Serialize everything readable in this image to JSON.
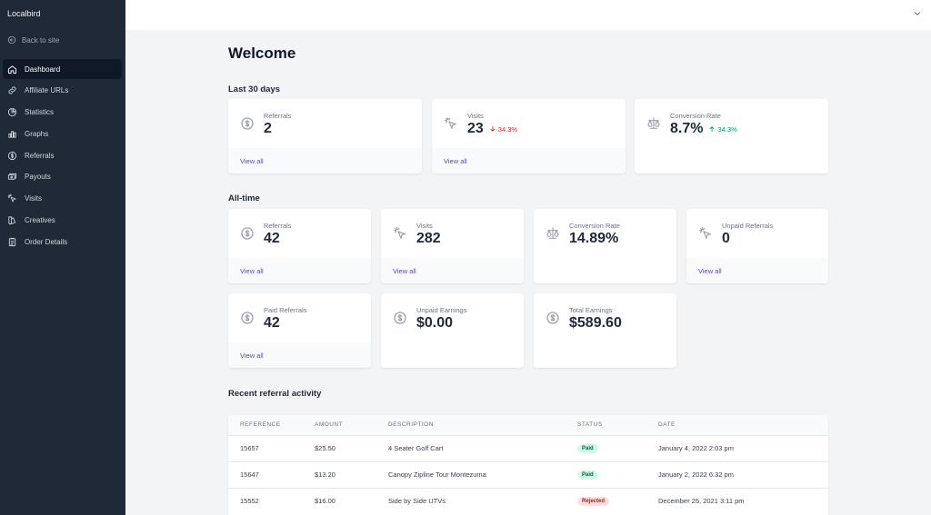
{
  "sidebar": {
    "brand": "Localbird",
    "back_label": "Back to site",
    "items": [
      {
        "label": "Dashboard",
        "icon": "home-icon",
        "active": true
      },
      {
        "label": "Affiliate URLs",
        "icon": "link-icon"
      },
      {
        "label": "Statistics",
        "icon": "chart-pie-icon"
      },
      {
        "label": "Graphs",
        "icon": "chart-bar-icon"
      },
      {
        "label": "Referrals",
        "icon": "currency-dollar-icon"
      },
      {
        "label": "Payouts",
        "icon": "cash-icon"
      },
      {
        "label": "Visits",
        "icon": "cursor-click-icon"
      },
      {
        "label": "Creatives",
        "icon": "color-swatch-icon"
      },
      {
        "label": "Order Details",
        "icon": "clipboard-list-icon"
      }
    ]
  },
  "page": {
    "title": "Welcome"
  },
  "last30": {
    "heading": "Last 30 days",
    "cards": [
      {
        "label": "Referrals",
        "value": "2",
        "link": "View all",
        "icon": "currency-dollar-icon"
      },
      {
        "label": "Visits",
        "value": "23",
        "change": "34.3%",
        "direction": "down",
        "link": "View all",
        "icon": "cursor-click-icon"
      },
      {
        "label": "Conversion Rate",
        "value": "8.7%",
        "change": "34.3%",
        "direction": "up",
        "icon": "scale-icon"
      }
    ]
  },
  "alltime": {
    "heading": "All-time",
    "cards": [
      {
        "label": "Referrals",
        "value": "42",
        "link": "View all",
        "icon": "currency-dollar-icon"
      },
      {
        "label": "Visits",
        "value": "282",
        "link": "View all",
        "icon": "cursor-click-icon"
      },
      {
        "label": "Conversion Rate",
        "value": "14.89%",
        "icon": "scale-icon"
      },
      {
        "label": "Unpaid Referrals",
        "value": "0",
        "link": "View all",
        "icon": "cursor-click-icon"
      },
      {
        "label": "Paid Referrals",
        "value": "42",
        "link": "View all",
        "icon": "currency-dollar-icon"
      },
      {
        "label": "Unpaid Earnings",
        "value": "$0.00",
        "icon": "currency-dollar-icon"
      },
      {
        "label": "Total Earnings",
        "value": "$589.60",
        "icon": "currency-dollar-icon"
      }
    ]
  },
  "activity": {
    "heading": "Recent referral activity",
    "columns": [
      "REFERENCE",
      "AMOUNT",
      "DESCRIPTION",
      "STATUS",
      "DATE"
    ],
    "rows": [
      {
        "reference": "15657",
        "amount": "$25.50",
        "description": "4 Seater Golf Cart",
        "status": "Paid",
        "date": "January 4, 2022 2:03 pm"
      },
      {
        "reference": "15647",
        "amount": "$13.20",
        "description": "Canopy Zipline Tour Montezuma",
        "status": "Paid",
        "date": "January 2, 2022 6:32 pm"
      },
      {
        "reference": "15552",
        "amount": "$16.00",
        "description": "Side by Side UTVs",
        "status": "Rejected",
        "date": "December 25, 2021 3:11 pm"
      }
    ]
  },
  "colors": {
    "sidebar_bg": "#1f2937",
    "accent": "#4f46e5",
    "up": "#059669",
    "down": "#dc2626"
  }
}
